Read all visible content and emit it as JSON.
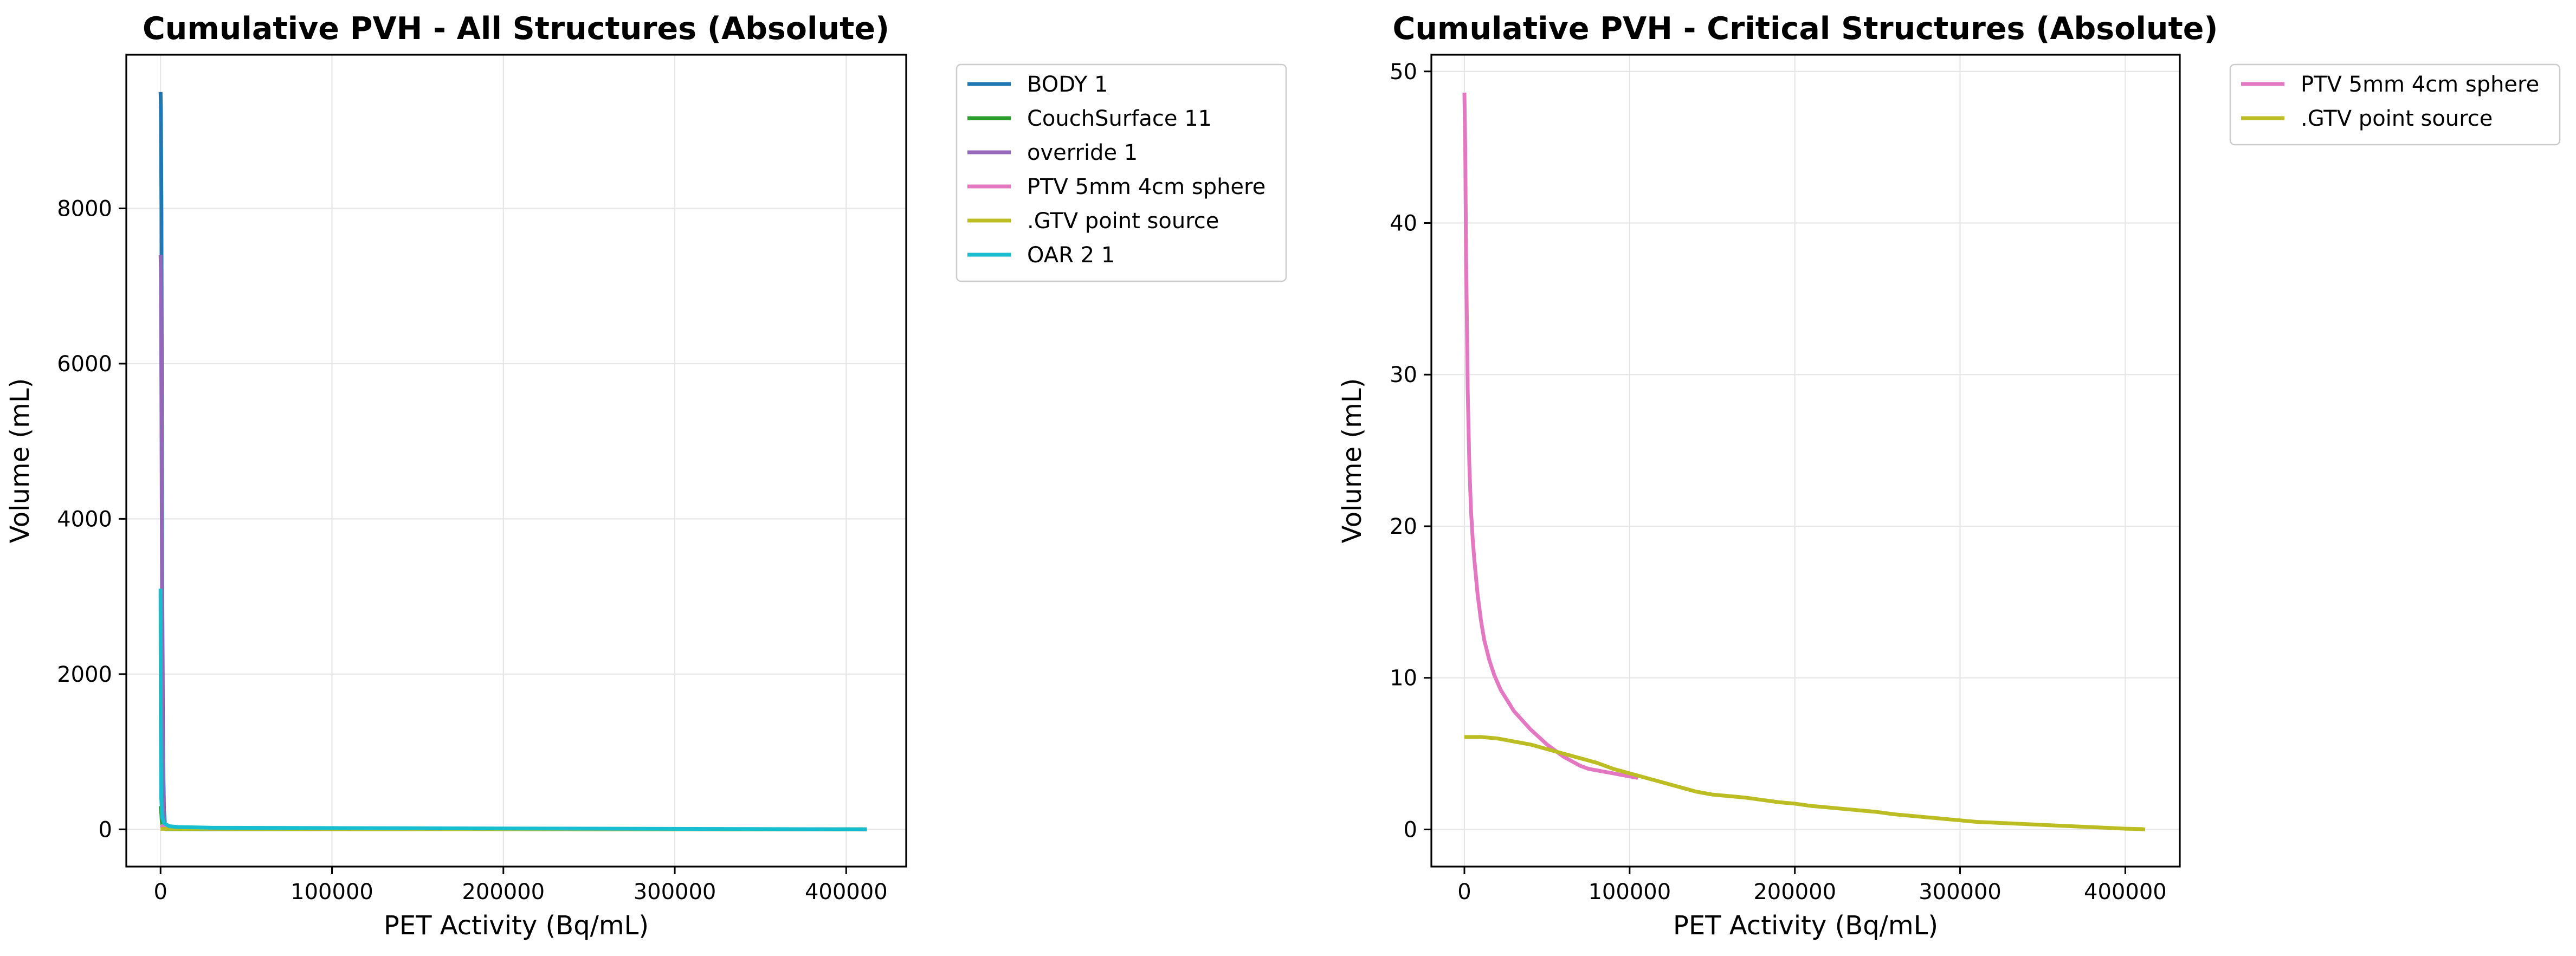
{
  "chart_data": [
    {
      "type": "line",
      "title": "Cumulative PVH - All Structures (Absolute)",
      "xlabel": "PET Activity (Bq/mL)",
      "ylabel": "Volume (mL)",
      "xlim": [
        -20000,
        435000
      ],
      "ylim": [
        -480,
        9980
      ],
      "xticks": [
        0,
        100000,
        200000,
        300000,
        400000
      ],
      "xtick_labels": [
        "0",
        "100000",
        "200000",
        "300000",
        "400000"
      ],
      "yticks": [
        0,
        2000,
        4000,
        6000,
        8000
      ],
      "ytick_labels": [
        "0",
        "2000",
        "4000",
        "6000",
        "8000"
      ],
      "grid": true,
      "legend": "outside-top-right",
      "series": [
        {
          "name": "BODY 1",
          "color": "#1f77b4",
          "x": [
            0,
            200,
            500,
            1000,
            1500,
            2000,
            2500,
            3000,
            4000,
            6000,
            10000,
            20000,
            412000
          ],
          "y": [
            9500,
            9300,
            8000,
            3000,
            900,
            250,
            80,
            30,
            15,
            8,
            5,
            3,
            0
          ]
        },
        {
          "name": "CouchSurface 11",
          "color": "#2ca02c",
          "x": [
            0,
            300,
            800,
            1500,
            3000,
            412000
          ],
          "y": [
            300,
            250,
            80,
            15,
            3,
            0
          ]
        },
        {
          "name": "override 1",
          "color": "#9467bd",
          "x": [
            0,
            200,
            500,
            1000,
            1500,
            2000,
            3000,
            5000,
            412000
          ],
          "y": [
            7400,
            7200,
            5500,
            2000,
            500,
            120,
            30,
            8,
            0
          ]
        },
        {
          "name": "PTV 5mm 4cm sphere",
          "color": "#e377c2",
          "x": [
            0,
            2000,
            5000,
            10000,
            20000,
            50000,
            80000,
            110000
          ],
          "y": [
            48.5,
            28,
            17,
            12,
            9,
            6,
            4.2,
            3.6
          ]
        },
        {
          "name": ".GTV point source",
          "color": "#bcbd22",
          "x": [
            0,
            20000,
            60000,
            100000,
            160000,
            220000,
            300000,
            340000,
            412000
          ],
          "y": [
            6.1,
            6.0,
            5.0,
            3.7,
            2.2,
            1.5,
            0.6,
            0.4,
            0
          ]
        },
        {
          "name": "OAR 2 1",
          "color": "#17becf",
          "x": [
            0,
            100,
            400,
            1000,
            2000,
            5000,
            10000,
            30000,
            412000
          ],
          "y": [
            3100,
            1500,
            400,
            150,
            80,
            40,
            30,
            20,
            0
          ]
        }
      ]
    },
    {
      "type": "line",
      "title": "Cumulative PVH - Critical Structures (Absolute)",
      "xlabel": "PET Activity (Bq/mL)",
      "ylabel": "Volume (mL)",
      "xlim": [
        -20000,
        433000
      ],
      "ylim": [
        -2.45,
        51.1
      ],
      "xticks": [
        0,
        100000,
        200000,
        300000,
        400000
      ],
      "xtick_labels": [
        "0",
        "100000",
        "200000",
        "300000",
        "400000"
      ],
      "yticks": [
        0,
        10,
        20,
        30,
        40,
        50
      ],
      "ytick_labels": [
        "0",
        "10",
        "20",
        "30",
        "40",
        "50"
      ],
      "grid": true,
      "legend": "outside-top-right",
      "series": [
        {
          "name": "PTV 5mm 4cm sphere",
          "color": "#e377c2",
          "x": [
            0,
            500,
            1000,
            2000,
            3000,
            4000,
            5000,
            6000,
            8000,
            10000,
            12000,
            15000,
            18000,
            22000,
            26000,
            30000,
            35000,
            40000,
            45000,
            50000,
            55000,
            60000,
            65000,
            70000,
            75000,
            80000,
            85000,
            90000,
            95000,
            100000,
            105000
          ],
          "y": [
            48.6,
            45,
            38,
            29,
            24,
            21,
            19.2,
            17.8,
            15.5,
            13.8,
            12.5,
            11.2,
            10.2,
            9.2,
            8.5,
            7.8,
            7.2,
            6.6,
            6.1,
            5.6,
            5.2,
            4.8,
            4.5,
            4.2,
            4.0,
            3.9,
            3.8,
            3.7,
            3.6,
            3.5,
            3.4
          ]
        },
        {
          "name": ".GTV point source",
          "color": "#bcbd22",
          "x": [
            0,
            10000,
            20000,
            30000,
            40000,
            50000,
            60000,
            70000,
            80000,
            90000,
            100000,
            110000,
            120000,
            130000,
            140000,
            150000,
            160000,
            170000,
            180000,
            190000,
            200000,
            210000,
            220000,
            230000,
            240000,
            250000,
            260000,
            270000,
            280000,
            290000,
            300000,
            310000,
            320000,
            330000,
            340000,
            350000,
            360000,
            370000,
            380000,
            390000,
            400000,
            410000,
            412000
          ],
          "y": [
            6.1,
            6.1,
            6.0,
            5.8,
            5.6,
            5.3,
            5.0,
            4.7,
            4.4,
            4.0,
            3.7,
            3.4,
            3.1,
            2.8,
            2.5,
            2.3,
            2.2,
            2.1,
            1.95,
            1.8,
            1.7,
            1.55,
            1.45,
            1.35,
            1.25,
            1.15,
            1.0,
            0.9,
            0.8,
            0.7,
            0.6,
            0.5,
            0.45,
            0.4,
            0.35,
            0.3,
            0.25,
            0.2,
            0.15,
            0.1,
            0.05,
            0.02,
            0
          ]
        }
      ]
    }
  ]
}
